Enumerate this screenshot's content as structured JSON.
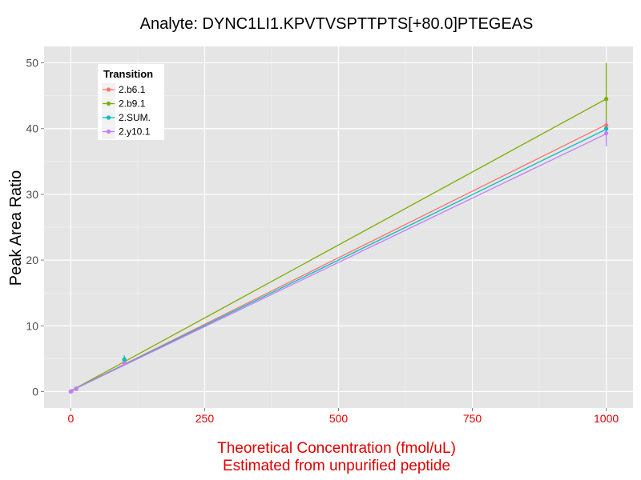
{
  "chart_data": {
    "type": "line",
    "title": "Analyte: DYNC1LI1.KPVTVSPTTPTS[+80.0]PTEGEAS",
    "xlabel_line1": "Theoretical Concentration (fmol/uL)",
    "xlabel_line2": "Estimated from unpurified peptide",
    "ylabel": "Peak Area Ratio",
    "xlim": [
      -50,
      1050
    ],
    "ylim": [
      -2.5,
      52.5
    ],
    "x_ticks": [
      0,
      250,
      500,
      750,
      1000
    ],
    "y_ticks": [
      0,
      10,
      20,
      30,
      40,
      50
    ],
    "grid": true,
    "legend": {
      "title": "Transition",
      "position": "top-left"
    },
    "x": [
      0,
      1,
      10,
      100,
      1000
    ],
    "series": [
      {
        "name": "2.b6.1",
        "color": "#F8766D",
        "values": [
          0,
          0.05,
          0.4,
          4.4,
          40.5
        ],
        "error": [
          0,
          0,
          0,
          0.3,
          0.8
        ],
        "fit": [
          0.1,
          40.6
        ]
      },
      {
        "name": "2.b9.1",
        "color": "#7CAE00",
        "values": [
          0,
          0.05,
          0.45,
          4.8,
          44.5
        ],
        "error": [
          0,
          0,
          0,
          0.5,
          5.5
        ],
        "fit": [
          0.1,
          44.5
        ]
      },
      {
        "name": "2.SUM.",
        "color": "#00BFC4",
        "values": [
          0,
          0.05,
          0.4,
          4.9,
          40.0
        ],
        "error": [
          0,
          0,
          0,
          0.6,
          1.0
        ],
        "fit": [
          0.1,
          39.9
        ]
      },
      {
        "name": "2.y10.1",
        "color": "#C77CFF",
        "values": [
          0,
          0.05,
          0.4,
          4.3,
          39.3
        ],
        "error": [
          0,
          0,
          0,
          0.3,
          2.0
        ],
        "fit": [
          0.1,
          39.2
        ]
      }
    ]
  }
}
